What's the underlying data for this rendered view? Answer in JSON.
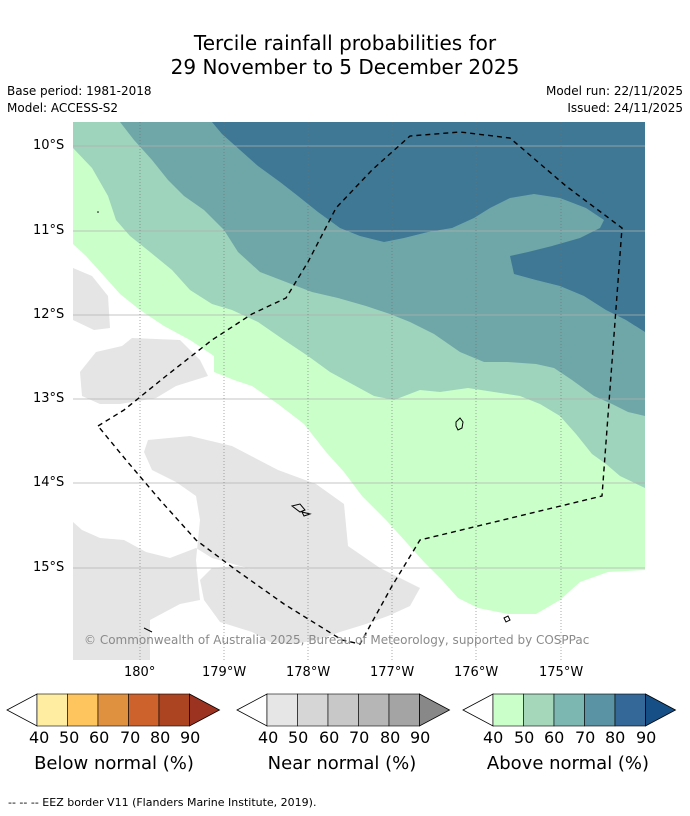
{
  "title": {
    "line1": "Tercile rainfall probabilities for",
    "line2": "29 November to 5 December 2025"
  },
  "meta": {
    "base_period": "Base period: 1981-2018",
    "model": "Model: ACCESS-S2",
    "model_run": "Model run: 22/11/2025",
    "issued": "Issued: 24/11/2025"
  },
  "map": {
    "lat_ticks": [
      "10°S",
      "11°S",
      "12°S",
      "13°S",
      "14°S",
      "15°S"
    ],
    "lon_ticks": [
      "180°",
      "179°W",
      "178°W",
      "177°W",
      "176°W",
      "175°W"
    ],
    "copyright": "© Commonwealth of Australia 2025, Bureau of Meteorology, supported by COSPPac",
    "land_color": "#e5e5e5",
    "ocean_color": "#ffffff"
  },
  "colorbars": [
    {
      "label": "Below normal (%)",
      "ticks": [
        "40",
        "50",
        "60",
        "70",
        "80",
        "90"
      ],
      "colors": [
        "#ffeea2",
        "#fec45d",
        "#e0913f",
        "#cd622d",
        "#ac4422",
        "#9c3320"
      ]
    },
    {
      "label": "Near normal (%)",
      "ticks": [
        "40",
        "50",
        "60",
        "70",
        "80",
        "90"
      ],
      "colors": [
        "#e6e6e6",
        "#d6d6d6",
        "#c8c8c8",
        "#b6b6b6",
        "#a4a4a4",
        "#888888"
      ]
    },
    {
      "label": "Above normal (%)",
      "ticks": [
        "40",
        "50",
        "60",
        "70",
        "80",
        "90"
      ],
      "colors": [
        "#caffca",
        "#a5d8bb",
        "#7db7b1",
        "#5a93a4",
        "#346898",
        "#164e86"
      ]
    }
  ],
  "footer": "--  --  -- EEZ border V11 (Flanders Marine Institute, 2019)."
}
